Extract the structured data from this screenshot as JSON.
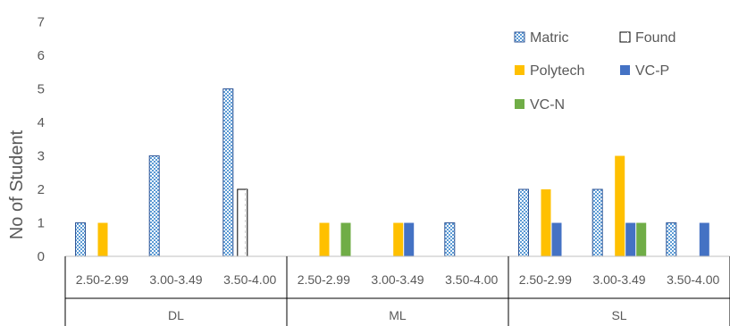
{
  "chart_data": {
    "type": "bar",
    "ylabel": "No of Student",
    "ylim": [
      0,
      7
    ],
    "yticks": [
      "0",
      "1",
      "2",
      "3",
      "4",
      "5",
      "6",
      "7"
    ],
    "groups": [
      {
        "label": "DL",
        "categories": [
          "2.50-2.99",
          "3.00-3.49",
          "3.50-4.00"
        ]
      },
      {
        "label": "ML",
        "categories": [
          "2.50-2.99",
          "3.00-3.49",
          "3.50-4.00"
        ]
      },
      {
        "label": "SL",
        "categories": [
          "2.50-2.99",
          "3.00-3.49",
          "3.50-4.00"
        ]
      }
    ],
    "series": [
      {
        "name": "Matric",
        "color": "#5b9bd5",
        "pattern": "checker",
        "values": [
          1,
          3,
          5,
          0,
          0,
          1,
          2,
          2,
          1
        ]
      },
      {
        "name": "Found",
        "color": "#000000",
        "pattern": "outline",
        "values": [
          0,
          0,
          2,
          0,
          0,
          0,
          0,
          0,
          0
        ]
      },
      {
        "name": "Polytech",
        "color": "#ffc000",
        "pattern": "solid",
        "values": [
          1,
          0,
          0,
          1,
          1,
          0,
          2,
          3,
          0
        ]
      },
      {
        "name": "VC-P",
        "color": "#4472c4",
        "pattern": "solid",
        "values": [
          0,
          0,
          0,
          0,
          1,
          0,
          1,
          1,
          1
        ]
      },
      {
        "name": "VC-N",
        "color": "#70ad47",
        "pattern": "solid",
        "values": [
          0,
          0,
          0,
          1,
          0,
          0,
          0,
          1,
          0
        ]
      }
    ],
    "legend_position": "top-right",
    "grid": false
  }
}
